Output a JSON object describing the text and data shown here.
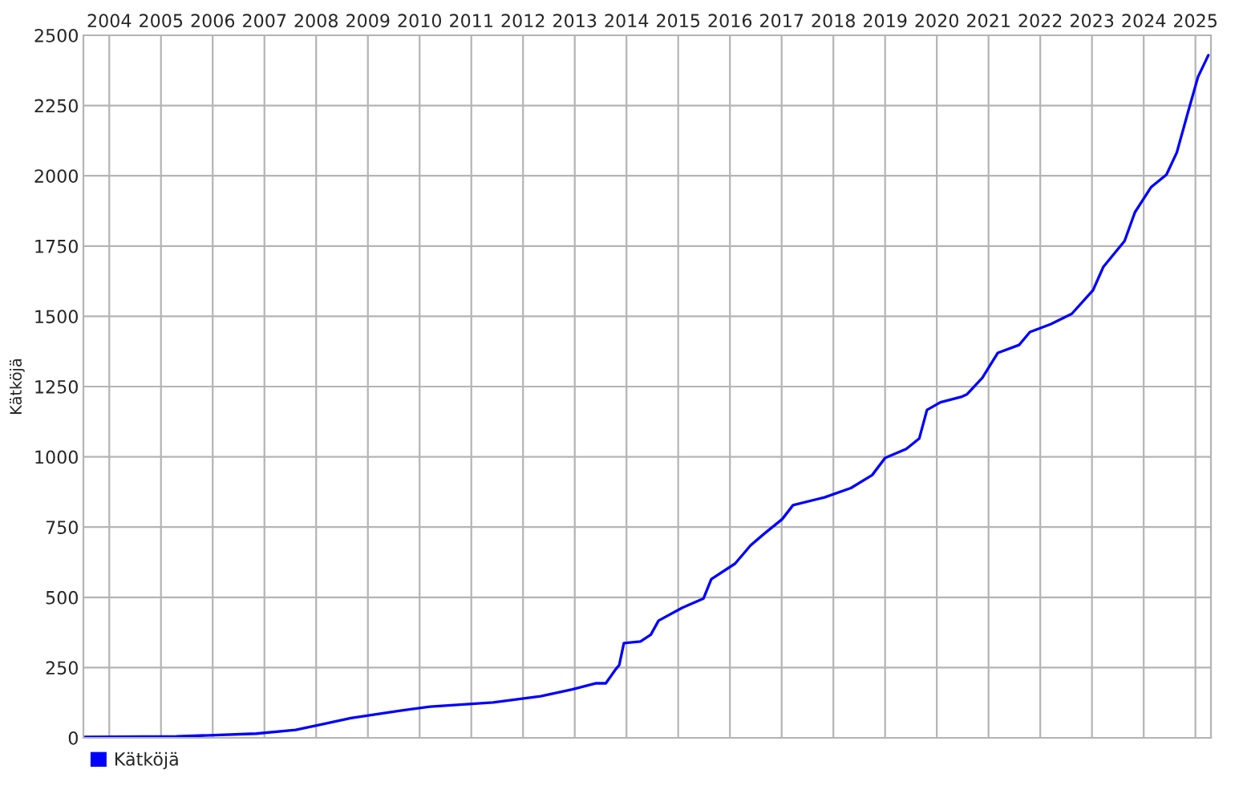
{
  "chart_data": {
    "type": "line",
    "ylabel": "Kätköjä",
    "x": [
      2004.0,
      2005.8,
      2007.34,
      2008.1,
      2008.56,
      2009.17,
      2010.1,
      2010.7,
      2011.92,
      2012.84,
      2013.45,
      2013.9,
      2014.1,
      2014.3,
      2014.36,
      2014.45,
      2014.77,
      2014.97,
      2015.12,
      2015.58,
      2015.99,
      2016.14,
      2016.6,
      2016.9,
      2017.16,
      2017.51,
      2017.72,
      2018.33,
      2018.84,
      2019.25,
      2019.5,
      2019.91,
      2020.16,
      2020.31,
      2020.57,
      2020.97,
      2021.08,
      2021.38,
      2021.68,
      2022.09,
      2022.3,
      2022.7,
      2023.11,
      2023.52,
      2023.72,
      2024.13,
      2024.33,
      2024.64,
      2024.94,
      2025.14,
      2025.35,
      2025.55,
      2025.75
    ],
    "series": [
      {
        "name": "Kätköjä",
        "color": "#0000ff",
        "values": [
          3,
          5,
          15,
          28,
          46,
          70,
          96,
          111,
          126,
          148,
          172,
          194,
          194,
          246,
          259,
          337,
          343,
          367,
          417,
          463,
          496,
          565,
          620,
          685,
          726,
          778,
          828,
          856,
          889,
          935,
          996,
          1028,
          1065,
          1167,
          1194,
          1213,
          1222,
          1281,
          1370,
          1398,
          1444,
          1472,
          1509,
          1593,
          1676,
          1768,
          1870,
          1959,
          2004,
          2083,
          2222,
          2352,
          2429
        ]
      }
    ],
    "xlim": [
      2004.0,
      2025.8
    ],
    "xticks": [
      {
        "value": 2004.5,
        "label": "2004"
      },
      {
        "value": 2005.5,
        "label": "2005"
      },
      {
        "value": 2006.5,
        "label": "2006"
      },
      {
        "value": 2007.5,
        "label": "2007"
      },
      {
        "value": 2008.5,
        "label": "2008"
      },
      {
        "value": 2009.5,
        "label": "2009"
      },
      {
        "value": 2010.5,
        "label": "2010"
      },
      {
        "value": 2011.5,
        "label": "2011"
      },
      {
        "value": 2012.5,
        "label": "2012"
      },
      {
        "value": 2013.5,
        "label": "2013"
      },
      {
        "value": 2014.5,
        "label": "2014"
      },
      {
        "value": 2015.5,
        "label": "2015"
      },
      {
        "value": 2016.5,
        "label": "2016"
      },
      {
        "value": 2017.5,
        "label": "2017"
      },
      {
        "value": 2018.5,
        "label": "2018"
      },
      {
        "value": 2019.5,
        "label": "2019"
      },
      {
        "value": 2020.5,
        "label": "2020"
      },
      {
        "value": 2021.5,
        "label": "2021"
      },
      {
        "value": 2022.5,
        "label": "2022"
      },
      {
        "value": 2023.5,
        "label": "2023"
      },
      {
        "value": 2024.5,
        "label": "2024"
      },
      {
        "value": 2025.5,
        "label": "2025"
      }
    ],
    "ylim": [
      0,
      2500
    ],
    "yticks": [
      0,
      250,
      500,
      750,
      1000,
      1250,
      1500,
      1750,
      2000,
      2250,
      2500
    ],
    "grid": true,
    "legend": "bottom left",
    "marker": "none",
    "line_style": "solid"
  }
}
